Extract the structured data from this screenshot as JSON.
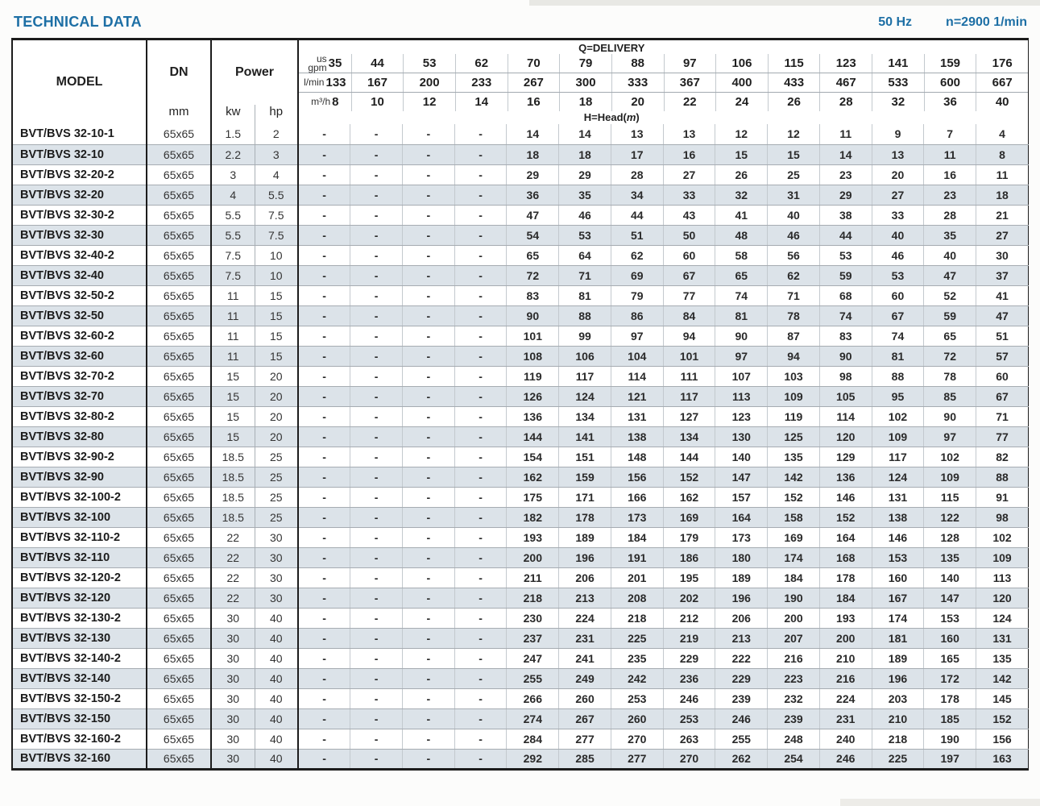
{
  "header": {
    "title": "TECHNICAL DATA",
    "frequency": "50 Hz",
    "speed": "n=2900 1/min"
  },
  "table": {
    "model_header": "MODEL",
    "dn_header": "DN",
    "dn_unit": "mm",
    "power_header": "Power",
    "kw_label": "kw",
    "hp_label": "hp",
    "delivery_title": "Q=DELIVERY",
    "head_title_prefix": "H=Head(",
    "head_title_unit": "m",
    "head_title_suffix": ")",
    "unit_rows": [
      {
        "label_small": "us",
        "label": "gpm",
        "values": [
          "35",
          "44",
          "53",
          "62",
          "70",
          "79",
          "88",
          "97",
          "106",
          "115",
          "123",
          "141",
          "159",
          "176"
        ]
      },
      {
        "label_small": "",
        "label": "l/min",
        "values": [
          "133",
          "167",
          "200",
          "233",
          "267",
          "300",
          "333",
          "367",
          "400",
          "433",
          "467",
          "533",
          "600",
          "667"
        ]
      },
      {
        "label_small": "",
        "label": "m³/h",
        "values": [
          "8",
          "10",
          "12",
          "14",
          "16",
          "18",
          "20",
          "22",
          "24",
          "26",
          "28",
          "32",
          "36",
          "40"
        ]
      }
    ],
    "rows": [
      {
        "model": "BVT/BVS 32-10-1",
        "dn": "65x65",
        "kw": "1.5",
        "hp": "2",
        "heads": [
          "-",
          "-",
          "-",
          "-",
          "14",
          "14",
          "13",
          "13",
          "12",
          "12",
          "11",
          "9",
          "7",
          "4"
        ]
      },
      {
        "model": "BVT/BVS 32-10",
        "dn": "65x65",
        "kw": "2.2",
        "hp": "3",
        "heads": [
          "-",
          "-",
          "-",
          "-",
          "18",
          "18",
          "17",
          "16",
          "15",
          "15",
          "14",
          "13",
          "11",
          "8"
        ]
      },
      {
        "model": "BVT/BVS 32-20-2",
        "dn": "65x65",
        "kw": "3",
        "hp": "4",
        "heads": [
          "-",
          "-",
          "-",
          "-",
          "29",
          "29",
          "28",
          "27",
          "26",
          "25",
          "23",
          "20",
          "16",
          "11"
        ]
      },
      {
        "model": "BVT/BVS 32-20",
        "dn": "65x65",
        "kw": "4",
        "hp": "5.5",
        "heads": [
          "-",
          "-",
          "-",
          "-",
          "36",
          "35",
          "34",
          "33",
          "32",
          "31",
          "29",
          "27",
          "23",
          "18"
        ]
      },
      {
        "model": "BVT/BVS 32-30-2",
        "dn": "65x65",
        "kw": "5.5",
        "hp": "7.5",
        "heads": [
          "-",
          "-",
          "-",
          "-",
          "47",
          "46",
          "44",
          "43",
          "41",
          "40",
          "38",
          "33",
          "28",
          "21"
        ]
      },
      {
        "model": "BVT/BVS 32-30",
        "dn": "65x65",
        "kw": "5.5",
        "hp": "7.5",
        "heads": [
          "-",
          "-",
          "-",
          "-",
          "54",
          "53",
          "51",
          "50",
          "48",
          "46",
          "44",
          "40",
          "35",
          "27"
        ]
      },
      {
        "model": "BVT/BVS 32-40-2",
        "dn": "65x65",
        "kw": "7.5",
        "hp": "10",
        "heads": [
          "-",
          "-",
          "-",
          "-",
          "65",
          "64",
          "62",
          "60",
          "58",
          "56",
          "53",
          "46",
          "40",
          "30"
        ]
      },
      {
        "model": "BVT/BVS 32-40",
        "dn": "65x65",
        "kw": "7.5",
        "hp": "10",
        "heads": [
          "-",
          "-",
          "-",
          "-",
          "72",
          "71",
          "69",
          "67",
          "65",
          "62",
          "59",
          "53",
          "47",
          "37"
        ]
      },
      {
        "model": "BVT/BVS 32-50-2",
        "dn": "65x65",
        "kw": "11",
        "hp": "15",
        "heads": [
          "-",
          "-",
          "-",
          "-",
          "83",
          "81",
          "79",
          "77",
          "74",
          "71",
          "68",
          "60",
          "52",
          "41"
        ]
      },
      {
        "model": "BVT/BVS 32-50",
        "dn": "65x65",
        "kw": "11",
        "hp": "15",
        "heads": [
          "-",
          "-",
          "-",
          "-",
          "90",
          "88",
          "86",
          "84",
          "81",
          "78",
          "74",
          "67",
          "59",
          "47"
        ]
      },
      {
        "model": "BVT/BVS 32-60-2",
        "dn": "65x65",
        "kw": "11",
        "hp": "15",
        "heads": [
          "-",
          "-",
          "-",
          "-",
          "101",
          "99",
          "97",
          "94",
          "90",
          "87",
          "83",
          "74",
          "65",
          "51"
        ]
      },
      {
        "model": "BVT/BVS 32-60",
        "dn": "65x65",
        "kw": "11",
        "hp": "15",
        "heads": [
          "-",
          "-",
          "-",
          "-",
          "108",
          "106",
          "104",
          "101",
          "97",
          "94",
          "90",
          "81",
          "72",
          "57"
        ]
      },
      {
        "model": "BVT/BVS 32-70-2",
        "dn": "65x65",
        "kw": "15",
        "hp": "20",
        "heads": [
          "-",
          "-",
          "-",
          "-",
          "119",
          "117",
          "114",
          "111",
          "107",
          "103",
          "98",
          "88",
          "78",
          "60"
        ]
      },
      {
        "model": "BVT/BVS 32-70",
        "dn": "65x65",
        "kw": "15",
        "hp": "20",
        "heads": [
          "-",
          "-",
          "-",
          "-",
          "126",
          "124",
          "121",
          "117",
          "113",
          "109",
          "105",
          "95",
          "85",
          "67"
        ]
      },
      {
        "model": "BVT/BVS 32-80-2",
        "dn": "65x65",
        "kw": "15",
        "hp": "20",
        "heads": [
          "-",
          "-",
          "-",
          "-",
          "136",
          "134",
          "131",
          "127",
          "123",
          "119",
          "114",
          "102",
          "90",
          "71"
        ]
      },
      {
        "model": "BVT/BVS 32-80",
        "dn": "65x65",
        "kw": "15",
        "hp": "20",
        "heads": [
          "-",
          "-",
          "-",
          "-",
          "144",
          "141",
          "138",
          "134",
          "130",
          "125",
          "120",
          "109",
          "97",
          "77"
        ]
      },
      {
        "model": "BVT/BVS 32-90-2",
        "dn": "65x65",
        "kw": "18.5",
        "hp": "25",
        "heads": [
          "-",
          "-",
          "-",
          "-",
          "154",
          "151",
          "148",
          "144",
          "140",
          "135",
          "129",
          "117",
          "102",
          "82"
        ]
      },
      {
        "model": "BVT/BVS 32-90",
        "dn": "65x65",
        "kw": "18.5",
        "hp": "25",
        "heads": [
          "-",
          "-",
          "-",
          "-",
          "162",
          "159",
          "156",
          "152",
          "147",
          "142",
          "136",
          "124",
          "109",
          "88"
        ]
      },
      {
        "model": "BVT/BVS 32-100-2",
        "dn": "65x65",
        "kw": "18.5",
        "hp": "25",
        "heads": [
          "-",
          "-",
          "-",
          "-",
          "175",
          "171",
          "166",
          "162",
          "157",
          "152",
          "146",
          "131",
          "115",
          "91"
        ]
      },
      {
        "model": "BVT/BVS 32-100",
        "dn": "65x65",
        "kw": "18.5",
        "hp": "25",
        "heads": [
          "-",
          "-",
          "-",
          "-",
          "182",
          "178",
          "173",
          "169",
          "164",
          "158",
          "152",
          "138",
          "122",
          "98"
        ]
      },
      {
        "model": "BVT/BVS 32-110-2",
        "dn": "65x65",
        "kw": "22",
        "hp": "30",
        "heads": [
          "-",
          "-",
          "-",
          "-",
          "193",
          "189",
          "184",
          "179",
          "173",
          "169",
          "164",
          "146",
          "128",
          "102"
        ]
      },
      {
        "model": "BVT/BVS 32-110",
        "dn": "65x65",
        "kw": "22",
        "hp": "30",
        "heads": [
          "-",
          "-",
          "-",
          "-",
          "200",
          "196",
          "191",
          "186",
          "180",
          "174",
          "168",
          "153",
          "135",
          "109"
        ]
      },
      {
        "model": "BVT/BVS 32-120-2",
        "dn": "65x65",
        "kw": "22",
        "hp": "30",
        "heads": [
          "-",
          "-",
          "-",
          "-",
          "211",
          "206",
          "201",
          "195",
          "189",
          "184",
          "178",
          "160",
          "140",
          "113"
        ]
      },
      {
        "model": "BVT/BVS 32-120",
        "dn": "65x65",
        "kw": "22",
        "hp": "30",
        "heads": [
          "-",
          "-",
          "-",
          "-",
          "218",
          "213",
          "208",
          "202",
          "196",
          "190",
          "184",
          "167",
          "147",
          "120"
        ]
      },
      {
        "model": "BVT/BVS 32-130-2",
        "dn": "65x65",
        "kw": "30",
        "hp": "40",
        "heads": [
          "-",
          "-",
          "-",
          "-",
          "230",
          "224",
          "218",
          "212",
          "206",
          "200",
          "193",
          "174",
          "153",
          "124"
        ]
      },
      {
        "model": "BVT/BVS 32-130",
        "dn": "65x65",
        "kw": "30",
        "hp": "40",
        "heads": [
          "-",
          "-",
          "-",
          "-",
          "237",
          "231",
          "225",
          "219",
          "213",
          "207",
          "200",
          "181",
          "160",
          "131"
        ]
      },
      {
        "model": "BVT/BVS 32-140-2",
        "dn": "65x65",
        "kw": "30",
        "hp": "40",
        "heads": [
          "-",
          "-",
          "-",
          "-",
          "247",
          "241",
          "235",
          "229",
          "222",
          "216",
          "210",
          "189",
          "165",
          "135"
        ]
      },
      {
        "model": "BVT/BVS 32-140",
        "dn": "65x65",
        "kw": "30",
        "hp": "40",
        "heads": [
          "-",
          "-",
          "-",
          "-",
          "255",
          "249",
          "242",
          "236",
          "229",
          "223",
          "216",
          "196",
          "172",
          "142"
        ]
      },
      {
        "model": "BVT/BVS 32-150-2",
        "dn": "65x65",
        "kw": "30",
        "hp": "40",
        "heads": [
          "-",
          "-",
          "-",
          "-",
          "266",
          "260",
          "253",
          "246",
          "239",
          "232",
          "224",
          "203",
          "178",
          "145"
        ]
      },
      {
        "model": "BVT/BVS 32-150",
        "dn": "65x65",
        "kw": "30",
        "hp": "40",
        "heads": [
          "-",
          "-",
          "-",
          "-",
          "274",
          "267",
          "260",
          "253",
          "246",
          "239",
          "231",
          "210",
          "185",
          "152"
        ]
      },
      {
        "model": "BVT/BVS 32-160-2",
        "dn": "65x65",
        "kw": "30",
        "hp": "40",
        "heads": [
          "-",
          "-",
          "-",
          "-",
          "284",
          "277",
          "270",
          "263",
          "255",
          "248",
          "240",
          "218",
          "190",
          "156"
        ]
      },
      {
        "model": "BVT/BVS 32-160",
        "dn": "65x65",
        "kw": "30",
        "hp": "40",
        "heads": [
          "-",
          "-",
          "-",
          "-",
          "292",
          "285",
          "277",
          "270",
          "262",
          "254",
          "246",
          "225",
          "197",
          "163"
        ]
      }
    ]
  },
  "colors": {
    "accent_blue": "#1d6fa5",
    "alt_row_bg": "#dce3e9",
    "border_dark": "#1c1c1c",
    "border_light": "#a9b0b6"
  }
}
